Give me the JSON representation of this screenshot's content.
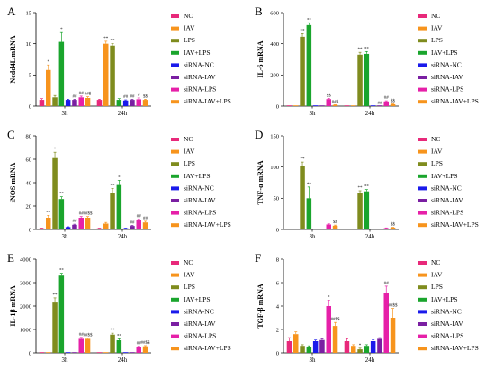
{
  "series_names": [
    "NC",
    "IAV",
    "LPS",
    "IAV+LPS",
    "siRNA-NC",
    "siRNA-IAV",
    "siRNA-LPS",
    "siRNA-IAV+LPS"
  ],
  "series_colors": [
    "#e8297a",
    "#f7941d",
    "#7f8c1e",
    "#1aa52d",
    "#1a1aeb",
    "#7a1fa2",
    "#e620a8",
    "#f7941d"
  ],
  "chart_data": [
    {
      "type": "bar",
      "panel": "A",
      "ylabel": "Nedd4L mRNA",
      "categories": [
        "3h",
        "24h"
      ],
      "ylim": [
        0,
        15
      ],
      "yticks": [
        "0",
        "5",
        "10",
        "15"
      ],
      "values": [
        [
          1.0,
          5.8,
          1.4,
          10.3,
          1.0,
          1.0,
          1.4,
          1.3
        ],
        [
          1.0,
          10.0,
          9.7,
          1.0,
          0.9,
          1.0,
          1.1,
          1.0
        ]
      ],
      "errors": [
        [
          0.2,
          0.8,
          0.3,
          1.5,
          0.1,
          0.1,
          0.2,
          0.2
        ],
        [
          0.1,
          0.4,
          0.3,
          0.2,
          0.1,
          0.1,
          0.2,
          0.1
        ]
      ],
      "labels": [
        [
          "",
          "*",
          "",
          "*",
          "",
          "##",
          "##",
          "##$"
        ],
        [
          "",
          "**",
          "**",
          "",
          "##",
          "##",
          "#",
          "$$"
        ]
      ]
    },
    {
      "type": "bar",
      "panel": "B",
      "ylabel": "IL-6 mRNA",
      "categories": [
        "3h",
        "24h"
      ],
      "ylim": [
        0,
        600
      ],
      "yticks": [
        "0",
        "200",
        "400",
        "600"
      ],
      "values": [
        [
          1,
          1,
          445,
          520,
          1,
          1,
          45,
          8
        ],
        [
          1,
          1,
          330,
          335,
          1,
          1,
          30,
          12
        ]
      ],
      "errors": [
        [
          0,
          0,
          20,
          15,
          0,
          0,
          4,
          1
        ],
        [
          0,
          0,
          15,
          15,
          0,
          0,
          4,
          2
        ]
      ],
      "labels": [
        [
          "",
          "",
          "**",
          "**",
          "",
          "",
          "$$",
          "##$"
        ],
        [
          "",
          "",
          "**",
          "**",
          "",
          "##",
          "##",
          "$$"
        ]
      ]
    },
    {
      "type": "bar",
      "panel": "C",
      "ylabel": "iNOS mRNA",
      "categories": [
        "3h",
        "24h"
      ],
      "ylim": [
        0,
        80
      ],
      "yticks": [
        "0",
        "20",
        "40",
        "60",
        "80"
      ],
      "values": [
        [
          1,
          10,
          61,
          26,
          2,
          4,
          10,
          10
        ],
        [
          1,
          5,
          31,
          38,
          1,
          3,
          8,
          6
        ]
      ],
      "errors": [
        [
          0.2,
          2,
          5,
          2,
          0.3,
          0.5,
          1,
          1
        ],
        [
          0.2,
          1,
          4,
          4,
          0.2,
          0.5,
          1,
          1
        ]
      ],
      "labels": [
        [
          "",
          "**",
          "*",
          "**",
          "",
          "##",
          "##",
          "##$$"
        ],
        [
          "",
          "",
          "**",
          "*",
          "",
          "##",
          "##",
          "##"
        ]
      ]
    },
    {
      "type": "bar",
      "panel": "D",
      "ylabel": "TNF-α mRNA",
      "categories": [
        "3h",
        "24h"
      ],
      "ylim": [
        0,
        150
      ],
      "yticks": [
        "0",
        "50",
        "100",
        "150"
      ],
      "values": [
        [
          1,
          1,
          102,
          50,
          1,
          1,
          8,
          6
        ],
        [
          1,
          1,
          59,
          61,
          1,
          1,
          2,
          3
        ]
      ],
      "errors": [
        [
          0,
          0,
          6,
          18,
          0,
          0,
          1,
          1
        ],
        [
          0,
          0,
          3,
          3,
          0,
          0,
          0.5,
          0.5
        ]
      ],
      "labels": [
        [
          "",
          "",
          "**",
          "**",
          "",
          "",
          "",
          "$$"
        ],
        [
          "",
          "",
          "**",
          "**",
          "",
          "",
          "",
          "$$"
        ]
      ]
    },
    {
      "type": "bar",
      "panel": "E",
      "ylabel": "IL-1β mRNA",
      "categories": [
        "3h",
        "24h"
      ],
      "ylim": [
        0,
        4000
      ],
      "yticks": [
        "0",
        "1000",
        "2000",
        "3000",
        "4000"
      ],
      "values": [
        [
          1,
          1,
          2150,
          3300,
          1,
          1,
          600,
          600
        ],
        [
          1,
          1,
          780,
          540,
          1,
          1,
          250,
          280
        ]
      ],
      "errors": [
        [
          0,
          0,
          200,
          100,
          0,
          0,
          60,
          40
        ],
        [
          0,
          0,
          60,
          60,
          0,
          0,
          30,
          30
        ]
      ],
      "labels": [
        [
          "",
          "",
          "**",
          "**",
          "",
          "",
          "##",
          "##$$"
        ],
        [
          "",
          "",
          "**",
          "**",
          "",
          "",
          "##",
          "##$$"
        ]
      ]
    },
    {
      "type": "bar",
      "panel": "F",
      "ylabel": "TGF-β mRNA",
      "categories": [
        "3h",
        "24h"
      ],
      "ylim": [
        0,
        8
      ],
      "yticks": [
        "0",
        "2",
        "4",
        "6",
        "8"
      ],
      "values": [
        [
          1.0,
          1.6,
          0.6,
          0.5,
          1.0,
          1.1,
          4.0,
          2.3
        ],
        [
          1.0,
          0.6,
          0.3,
          0.6,
          1.0,
          1.2,
          5.1,
          3.0
        ]
      ],
      "errors": [
        [
          0.3,
          0.2,
          0.1,
          0.1,
          0.1,
          0.1,
          0.5,
          0.3
        ],
        [
          0.2,
          0.1,
          0.1,
          0.1,
          0.1,
          0.1,
          0.6,
          0.8
        ]
      ],
      "labels": [
        [
          "",
          "",
          "",
          "",
          "",
          "",
          "*",
          "##$$"
        ],
        [
          "",
          "",
          "*",
          "",
          "",
          "",
          "##",
          "##$$"
        ]
      ]
    }
  ]
}
